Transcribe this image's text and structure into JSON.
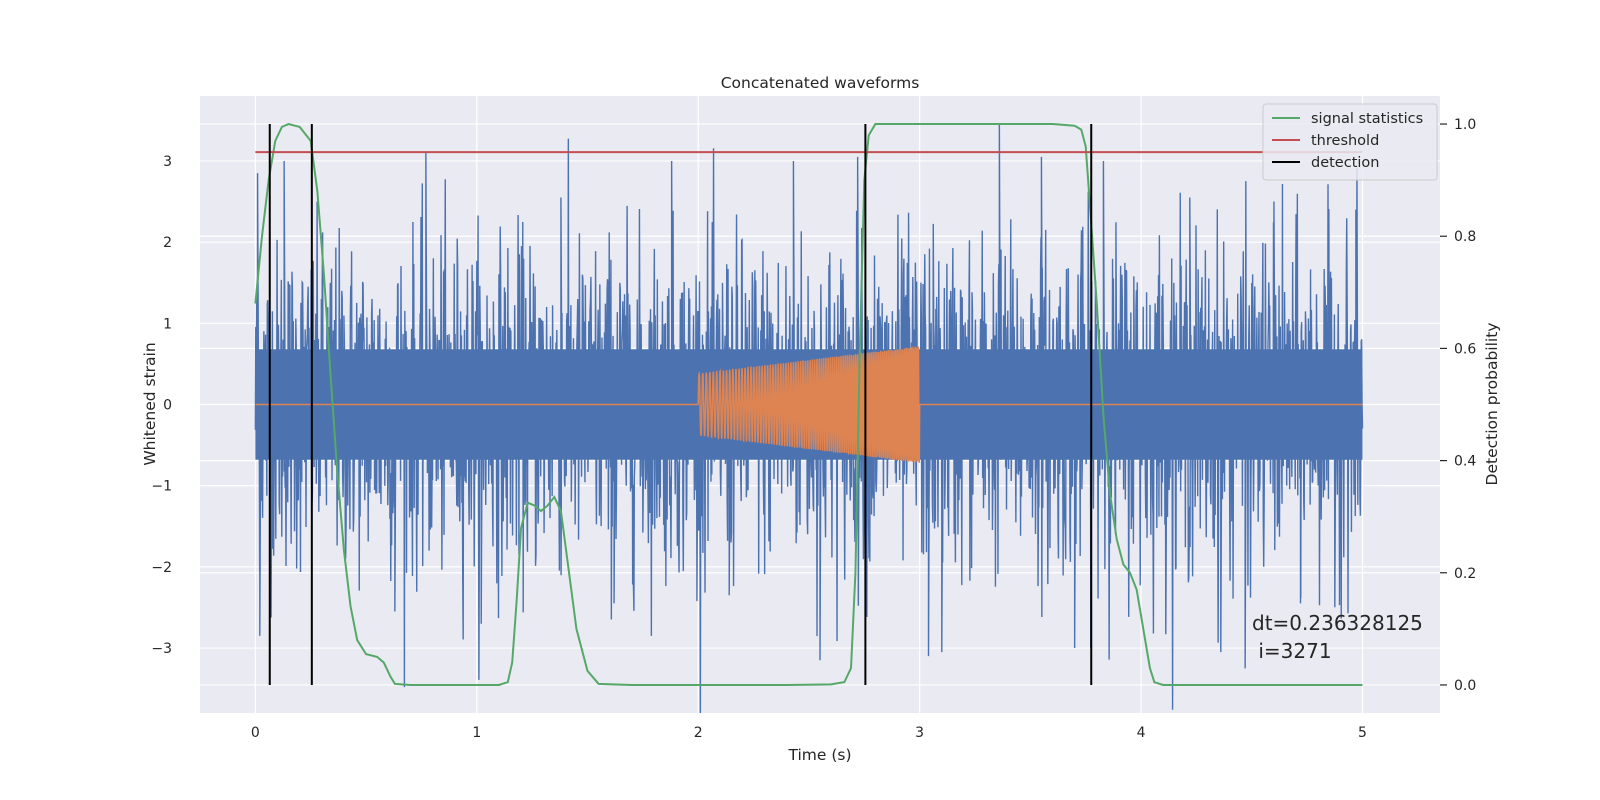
{
  "chart_data": {
    "type": "line",
    "title": "Concatenated waveforms",
    "xlabel": "Time (s)",
    "ylabel": "Whitened strain",
    "y2label": "Detection probability",
    "xlim": [
      -0.25,
      5.35
    ],
    "ylim": [
      -3.8,
      3.8
    ],
    "y2lim": [
      -0.05,
      1.05
    ],
    "xticks": [
      0,
      1,
      2,
      3,
      4,
      5
    ],
    "yticks": [
      -3,
      -2,
      -1,
      0,
      1,
      2,
      3
    ],
    "y2ticks": [
      0.0,
      0.2,
      0.4,
      0.6,
      0.8,
      1.0
    ],
    "xtick_labels": [
      "0",
      "1",
      "2",
      "3",
      "4",
      "5"
    ],
    "ytick_labels": [
      "−3",
      "−2",
      "−1",
      "0",
      "1",
      "2",
      "3"
    ],
    "y2tick_labels": [
      "0.0",
      "0.2",
      "0.4",
      "0.6",
      "0.8",
      "1.0"
    ],
    "grid": true,
    "legend_position": "top-right",
    "series": [
      {
        "kind": "noise",
        "color": "#4c72b0",
        "x_range": [
          0,
          5
        ],
        "noise_std": 1.0,
        "band_clip": 0.68,
        "spike_peaks": [
          {
            "x": 0.01,
            "y": 2.85
          },
          {
            "x": 0.02,
            "y": -2.85
          },
          {
            "x": 0.13,
            "y": 3.0
          },
          {
            "x": 0.63,
            "y": -2.55
          },
          {
            "x": 0.77,
            "y": 3.1
          },
          {
            "x": 1.02,
            "y": -2.7
          },
          {
            "x": 1.38,
            "y": 2.55
          },
          {
            "x": 1.62,
            "y": -2.45
          },
          {
            "x": 1.88,
            "y": 3.0
          },
          {
            "x": 2.14,
            "y": -2.35
          },
          {
            "x": 2.43,
            "y": 3.0
          },
          {
            "x": 2.55,
            "y": -3.15
          },
          {
            "x": 2.72,
            "y": 3.05
          },
          {
            "x": 3.04,
            "y": -3.1
          },
          {
            "x": 3.1,
            "y": -3.05
          },
          {
            "x": 3.36,
            "y": 3.45
          },
          {
            "x": 3.55,
            "y": 3.05
          },
          {
            "x": 3.7,
            "y": -3.0
          },
          {
            "x": 3.83,
            "y": 3.0
          },
          {
            "x": 4.22,
            "y": 2.55
          },
          {
            "x": 4.36,
            "y": -3.05
          },
          {
            "x": 4.47,
            "y": -3.25
          },
          {
            "x": 4.6,
            "y": 2.5
          },
          {
            "x": 4.72,
            "y": -2.45
          },
          {
            "x": 4.97,
            "y": 2.4
          }
        ]
      },
      {
        "kind": "chirp",
        "color": "#dd8452",
        "x_range": [
          0,
          5
        ],
        "chirp_start": 2.0,
        "chirp_end": 3.0,
        "amp_start": 0.38,
        "amp_end": 0.72,
        "freq_start": 60,
        "freq_end": 130
      },
      {
        "name": "signal statistics",
        "axis": "right",
        "color": "#55a868",
        "x": [
          0.0,
          0.03,
          0.06,
          0.09,
          0.12,
          0.15,
          0.2,
          0.25,
          0.28,
          0.31,
          0.34,
          0.37,
          0.4,
          0.43,
          0.46,
          0.5,
          0.55,
          0.58,
          0.61,
          0.63,
          0.7,
          0.9,
          1.1,
          1.14,
          1.16,
          1.18,
          1.2,
          1.23,
          1.26,
          1.29,
          1.32,
          1.35,
          1.38,
          1.41,
          1.45,
          1.5,
          1.55,
          1.7,
          2.0,
          2.4,
          2.6,
          2.66,
          2.69,
          2.71,
          2.73,
          2.75,
          2.77,
          2.8,
          3.0,
          3.3,
          3.6,
          3.7,
          3.73,
          3.75,
          3.77,
          3.8,
          3.83,
          3.86,
          3.89,
          3.92,
          3.95,
          3.98,
          4.01,
          4.04,
          4.06,
          4.1,
          4.5,
          5.0
        ],
        "values": [
          0.68,
          0.8,
          0.9,
          0.97,
          0.995,
          1.0,
          0.995,
          0.97,
          0.88,
          0.73,
          0.55,
          0.38,
          0.24,
          0.14,
          0.08,
          0.055,
          0.05,
          0.04,
          0.015,
          0.002,
          0.0,
          0.0,
          0.0,
          0.005,
          0.04,
          0.15,
          0.28,
          0.325,
          0.32,
          0.31,
          0.32,
          0.335,
          0.31,
          0.22,
          0.1,
          0.025,
          0.002,
          0.0,
          0.0,
          0.0,
          0.001,
          0.005,
          0.03,
          0.2,
          0.6,
          0.9,
          0.98,
          1.0,
          1.0,
          1.0,
          1.0,
          0.997,
          0.99,
          0.96,
          0.85,
          0.68,
          0.48,
          0.34,
          0.26,
          0.215,
          0.2,
          0.17,
          0.1,
          0.03,
          0.005,
          0.0,
          0.0,
          0.0
        ]
      },
      {
        "name": "threshold",
        "axis": "right",
        "color": "#c44e52",
        "x": [
          0,
          5
        ],
        "values": [
          0.95,
          0.95
        ]
      },
      {
        "name": "detection",
        "axis": "right",
        "kind": "vlines",
        "color": "#000000",
        "x": [
          0.065,
          0.255,
          2.755,
          3.775
        ],
        "y_range": [
          0.0,
          1.0
        ]
      }
    ],
    "annotation": {
      "line1": "dt=0.236328125",
      "line2": " i=3271",
      "x": 4.5,
      "y": -2.9
    }
  }
}
